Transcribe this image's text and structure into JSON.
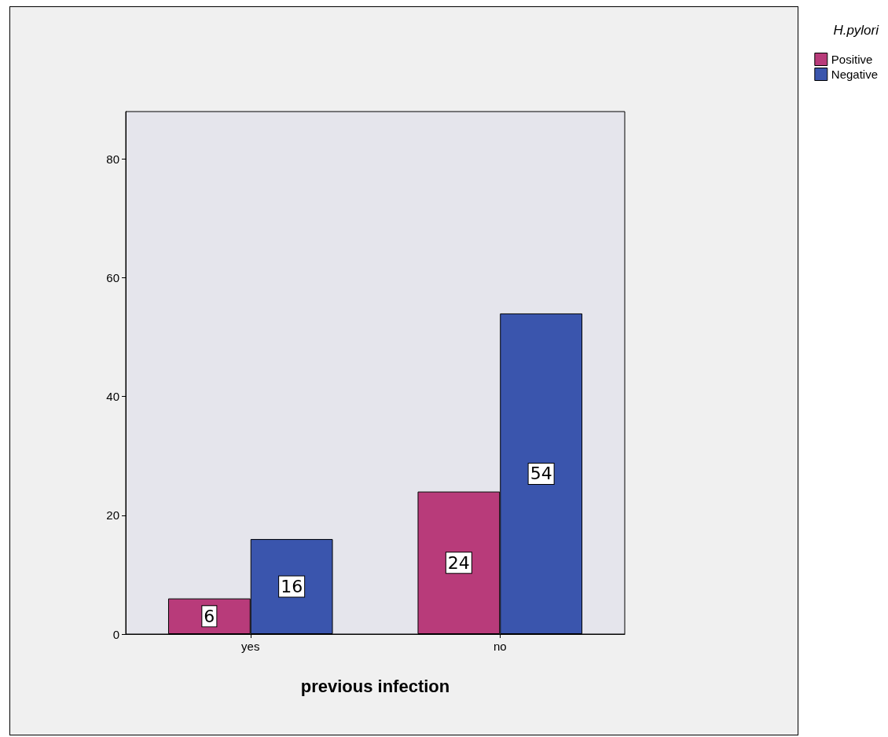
{
  "chart_data": {
    "type": "bar",
    "xlabel": "previous infection",
    "legend_title": "H.pylori",
    "categories": [
      "yes",
      "no"
    ],
    "series": [
      {
        "name": "Positive",
        "color": "#b83b7a",
        "values": [
          6,
          24
        ]
      },
      {
        "name": "Negative",
        "color": "#3a55ad",
        "values": [
          16,
          54
        ]
      }
    ],
    "ylim": [
      0,
      88
    ],
    "yticks": [
      0,
      20,
      40,
      60,
      80
    ],
    "data_labels": true,
    "grid": false,
    "legend": "top right"
  }
}
